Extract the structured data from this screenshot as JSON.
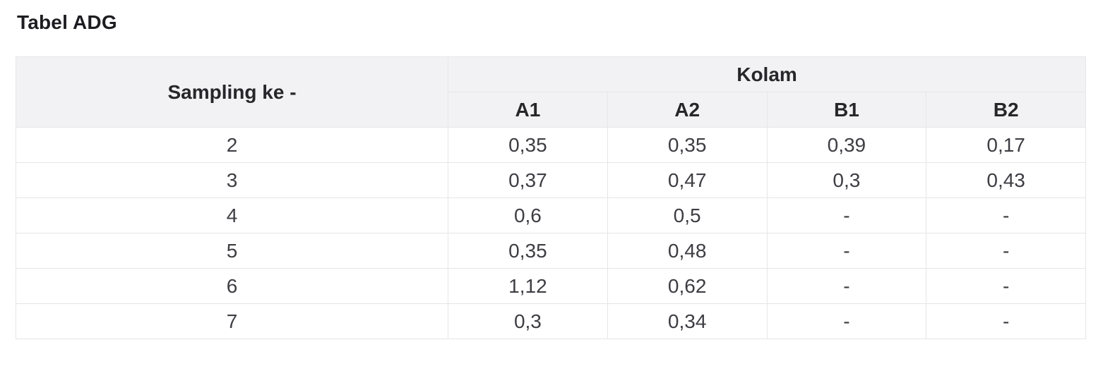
{
  "page": {
    "title": "Tabel ADG"
  },
  "table": {
    "corner_header": "Sampling ke -",
    "group_header": "Kolam",
    "sub_headers": [
      "A1",
      "A2",
      "B1",
      "B2"
    ],
    "rows": [
      {
        "sampling": "2",
        "values": [
          "0,35",
          "0,35",
          "0,39",
          "0,17"
        ]
      },
      {
        "sampling": "3",
        "values": [
          "0,37",
          "0,47",
          "0,3",
          "0,43"
        ]
      },
      {
        "sampling": "4",
        "values": [
          "0,6",
          "0,5",
          "-",
          "-"
        ]
      },
      {
        "sampling": "5",
        "values": [
          "0,35",
          "0,48",
          "-",
          "-"
        ]
      },
      {
        "sampling": "6",
        "values": [
          "1,12",
          "0,62",
          "-",
          "-"
        ]
      },
      {
        "sampling": "7",
        "values": [
          "0,3",
          "0,34",
          "-",
          "-"
        ]
      }
    ],
    "colors": {
      "header_bg": "#f2f2f4",
      "border": "#e6e6e9",
      "header_text": "#26262b",
      "body_text": "#3d3d43",
      "title_text": "#1d1d21"
    }
  },
  "chart_data": {
    "type": "table",
    "title": "Tabel ADG",
    "columns": [
      "Sampling ke -",
      "A1",
      "A2",
      "B1",
      "B2"
    ],
    "column_group": {
      "label": "Kolam",
      "spans": [
        "A1",
        "A2",
        "B1",
        "B2"
      ]
    },
    "rows": [
      [
        "2",
        "0,35",
        "0,35",
        "0,39",
        "0,17"
      ],
      [
        "3",
        "0,37",
        "0,47",
        "0,3",
        "0,43"
      ],
      [
        "4",
        "0,6",
        "0,5",
        "-",
        "-"
      ],
      [
        "5",
        "0,35",
        "0,48",
        "-",
        "-"
      ],
      [
        "6",
        "1,12",
        "0,62",
        "-",
        "-"
      ],
      [
        "7",
        "0,3",
        "0,34",
        "-",
        "-"
      ]
    ],
    "missing_value_marker": "-"
  }
}
